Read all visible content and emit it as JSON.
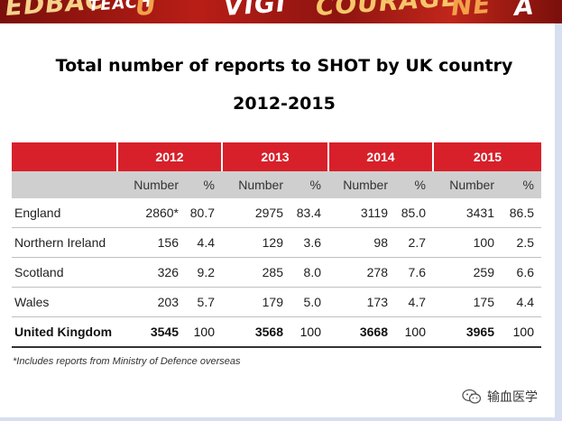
{
  "banner": {
    "fragments": [
      "EDBAC",
      "TEACH",
      "U",
      "VIGI",
      "COURAGE",
      "NE",
      "A"
    ],
    "bg": "#9a1610"
  },
  "title": {
    "line1": "Total number of reports to SHOT by UK country",
    "line2": "2012-2015"
  },
  "table": {
    "header_color": "#d7202a",
    "years": [
      "2012",
      "2013",
      "2014",
      "2015"
    ],
    "subheaders": {
      "number": "Number",
      "percent": "%"
    },
    "rows": [
      {
        "country": "England",
        "cells": [
          [
            "2860*",
            "80.7"
          ],
          [
            "2975",
            "83.4"
          ],
          [
            "3119",
            "85.0"
          ],
          [
            "3431",
            "86.5"
          ]
        ]
      },
      {
        "country": "Northern Ireland",
        "cells": [
          [
            "156",
            "4.4"
          ],
          [
            "129",
            "3.6"
          ],
          [
            "98",
            "2.7"
          ],
          [
            "100",
            "2.5"
          ]
        ]
      },
      {
        "country": "Scotland",
        "cells": [
          [
            "326",
            "9.2"
          ],
          [
            "285",
            "8.0"
          ],
          [
            "278",
            "7.6"
          ],
          [
            "259",
            "6.6"
          ]
        ]
      },
      {
        "country": "Wales",
        "cells": [
          [
            "203",
            "5.7"
          ],
          [
            "179",
            "5.0"
          ],
          [
            "173",
            "4.7"
          ],
          [
            "175",
            "4.4"
          ]
        ]
      }
    ],
    "total": {
      "country": "United Kingdom",
      "cells": [
        [
          "3545",
          "100"
        ],
        [
          "3568",
          "100"
        ],
        [
          "3668",
          "100"
        ],
        [
          "3965",
          "100"
        ]
      ]
    }
  },
  "footnote": "*Includes reports from Ministry of Defence overseas",
  "watermark": {
    "icon": "wechat-icon",
    "label": "输血医学"
  }
}
